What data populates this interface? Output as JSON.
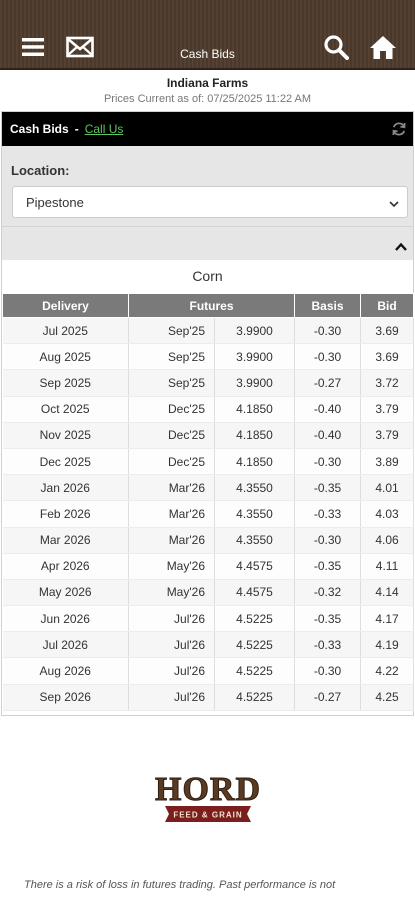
{
  "header": {
    "title": "Cash Bids",
    "icons": [
      "menu-icon",
      "mail-icon",
      "search-icon",
      "home-icon"
    ],
    "bg_color": "#4e3b2c"
  },
  "info": {
    "farm_name": "Indiana Farms",
    "prices_current": "Prices Current as of: 07/25/2025 11:22 AM"
  },
  "panel": {
    "title": "Cash Bids",
    "separator": "-",
    "call_us": "Call Us",
    "location_label": "Location:",
    "location_value": "Pipestone",
    "commodity": "Corn",
    "link_color": "#5cc75c"
  },
  "table": {
    "headers": {
      "delivery": "Delivery",
      "futures": "Futures",
      "basis": "Basis",
      "bid": "Bid"
    },
    "rows": [
      {
        "delivery": "Jul 2025",
        "month": "Sep'25",
        "price": "3.9900",
        "basis": "-0.30",
        "bid": "3.69"
      },
      {
        "delivery": "Aug 2025",
        "month": "Sep'25",
        "price": "3.9900",
        "basis": "-0.30",
        "bid": "3.69"
      },
      {
        "delivery": "Sep 2025",
        "month": "Sep'25",
        "price": "3.9900",
        "basis": "-0.27",
        "bid": "3.72"
      },
      {
        "delivery": "Oct 2025",
        "month": "Dec'25",
        "price": "4.1850",
        "basis": "-0.40",
        "bid": "3.79"
      },
      {
        "delivery": "Nov 2025",
        "month": "Dec'25",
        "price": "4.1850",
        "basis": "-0.40",
        "bid": "3.79"
      },
      {
        "delivery": "Dec 2025",
        "month": "Dec'25",
        "price": "4.1850",
        "basis": "-0.30",
        "bid": "3.89"
      },
      {
        "delivery": "Jan 2026",
        "month": "Mar'26",
        "price": "4.3550",
        "basis": "-0.35",
        "bid": "4.01"
      },
      {
        "delivery": "Feb 2026",
        "month": "Mar'26",
        "price": "4.3550",
        "basis": "-0.33",
        "bid": "4.03"
      },
      {
        "delivery": "Mar 2026",
        "month": "Mar'26",
        "price": "4.3550",
        "basis": "-0.30",
        "bid": "4.06"
      },
      {
        "delivery": "Apr 2026",
        "month": "May'26",
        "price": "4.4575",
        "basis": "-0.35",
        "bid": "4.11"
      },
      {
        "delivery": "May 2026",
        "month": "May'26",
        "price": "4.4575",
        "basis": "-0.32",
        "bid": "4.14"
      },
      {
        "delivery": "Jun 2026",
        "month": "Jul'26",
        "price": "4.5225",
        "basis": "-0.35",
        "bid": "4.17"
      },
      {
        "delivery": "Jul 2026",
        "month": "Jul'26",
        "price": "4.5225",
        "basis": "-0.33",
        "bid": "4.19"
      },
      {
        "delivery": "Aug 2026",
        "month": "Jul'26",
        "price": "4.5225",
        "basis": "-0.30",
        "bid": "4.22"
      },
      {
        "delivery": "Sep 2026",
        "month": "Jul'26",
        "price": "4.5225",
        "basis": "-0.27",
        "bid": "4.25"
      }
    ]
  },
  "footer": {
    "logo_main": "HORD",
    "logo_sub": "FEED & GRAIN",
    "logo_colors": {
      "text": "#5a3a22",
      "banner": "#7a1e1e"
    },
    "disclaimer": "There is a risk of loss in futures trading. Past performance is not"
  }
}
